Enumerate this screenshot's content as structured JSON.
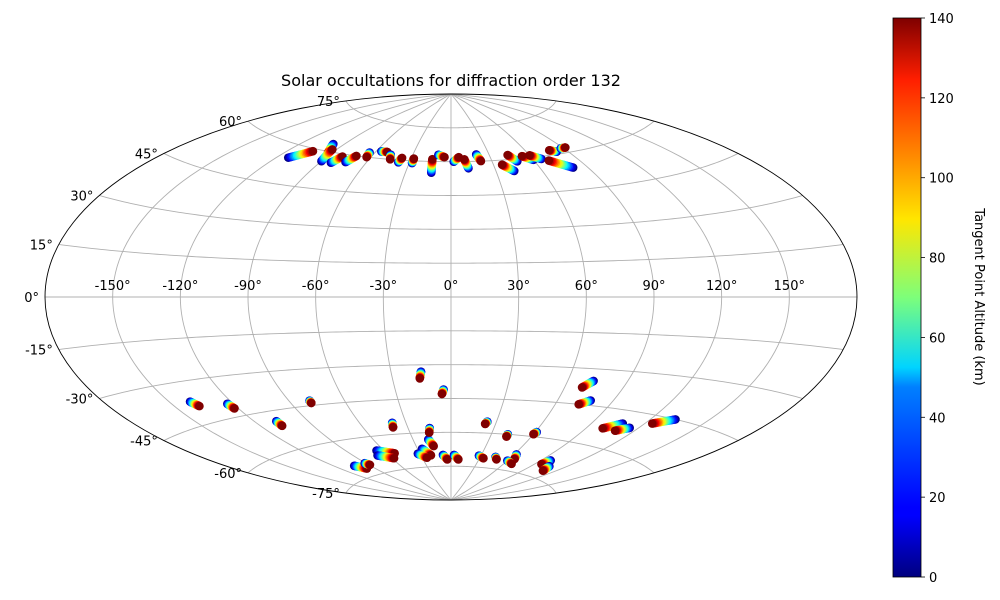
{
  "chart_data": {
    "type": "scatter",
    "projection": "aitoff",
    "title": "Solar occultations for diffraction order 132",
    "xlabel": "",
    "ylabel": "",
    "grid": true,
    "x_tick_labels": [
      "-150°",
      "-120°",
      "-90°",
      "-60°",
      "-30°",
      "0°",
      "30°",
      "60°",
      "90°",
      "120°",
      "150°"
    ],
    "y_tick_labels": [
      "75°",
      "60°",
      "45°",
      "30°",
      "15°",
      "0°",
      "-15°",
      "-30°",
      "-45°",
      "-60°",
      "-75°"
    ],
    "xlim": [
      -180,
      180
    ],
    "ylim": [
      -90,
      90
    ],
    "colorbar": {
      "label": "Tangent Point Altitude (km)",
      "range": [
        0,
        140
      ],
      "tick_labels": [
        "0",
        "20",
        "40",
        "60",
        "80",
        "100",
        "120",
        "140"
      ],
      "colormap": "jet"
    },
    "tracks": [
      {
        "lon_start": -113,
        "lat_start": 55,
        "lon_end": -104,
        "lat_end": 59
      },
      {
        "lon_start": -98,
        "lat_start": 63,
        "lon_end": -92,
        "lat_end": 59
      },
      {
        "lon_start": -90,
        "lat_start": 56,
        "lon_end": -93,
        "lat_end": 61
      },
      {
        "lon_start": -83,
        "lat_start": 56,
        "lon_end": -80,
        "lat_end": 59
      },
      {
        "lon_start": -74,
        "lat_start": 57,
        "lon_end": -71,
        "lat_end": 60
      },
      {
        "lon_start": -64,
        "lat_start": 62,
        "lon_end": -63,
        "lat_end": 60
      },
      {
        "lon_start": -56,
        "lat_start": 63,
        "lon_end": -51,
        "lat_end": 63
      },
      {
        "lon_start": -47,
        "lat_start": 62,
        "lon_end": -45,
        "lat_end": 60
      },
      {
        "lon_start": -38,
        "lat_start": 59,
        "lon_end": -37,
        "lat_end": 61
      },
      {
        "lon_start": -28,
        "lat_start": 59,
        "lon_end": -28,
        "lat_end": 61
      },
      {
        "lon_start": -13,
        "lat_start": 55,
        "lon_end": -14,
        "lat_end": 61
      },
      {
        "lon_start": -10,
        "lat_start": 63,
        "lon_end": -5,
        "lat_end": 62
      },
      {
        "lon_start": 2,
        "lat_start": 60,
        "lon_end": 6,
        "lat_end": 62
      },
      {
        "lon_start": 12,
        "lat_start": 57,
        "lon_end": 10,
        "lat_end": 61
      },
      {
        "lon_start": 20,
        "lat_start": 63,
        "lon_end": 22,
        "lat_end": 60
      },
      {
        "lon_start": 42,
        "lat_start": 55,
        "lon_end": 36,
        "lat_end": 58
      },
      {
        "lon_start": 48,
        "lat_start": 59,
        "lon_end": 44,
        "lat_end": 62
      },
      {
        "lon_start": 60,
        "lat_start": 59,
        "lon_end": 54,
        "lat_end": 61
      },
      {
        "lon_start": 66,
        "lat_start": 59,
        "lon_end": 60,
        "lat_end": 61
      },
      {
        "lon_start": 81,
        "lat_start": 54,
        "lon_end": 70,
        "lat_end": 58
      },
      {
        "lon_start": 82,
        "lat_start": 61,
        "lon_end": 78,
        "lat_end": 62
      },
      {
        "lon_start": 88,
        "lat_start": 62,
        "lon_end": 92,
        "lat_end": 62
      },
      {
        "lon_start": -140,
        "lat_start": -37,
        "lon_end": -138,
        "lat_end": -39
      },
      {
        "lon_start": -123,
        "lat_start": -40,
        "lon_end": -122,
        "lat_end": -42
      },
      {
        "lon_start": -108,
        "lat_start": -49,
        "lon_end": -108,
        "lat_end": -51
      },
      {
        "lon_start": -79,
        "lat_start": -43,
        "lon_end": -79,
        "lat_end": -44
      },
      {
        "lon_start": -39,
        "lat_start": -55,
        "lon_end": -40,
        "lat_end": -57
      },
      {
        "lon_start": -15,
        "lat_start": -33,
        "lon_end": -16,
        "lat_end": -36
      },
      {
        "lon_start": -4,
        "lat_start": -41,
        "lon_end": -5,
        "lat_end": -43
      },
      {
        "lon_start": -18,
        "lat_start": -63,
        "lon_end": -15,
        "lat_end": -66
      },
      {
        "lon_start": -15,
        "lat_start": -58,
        "lon_end": -16,
        "lat_end": -60
      },
      {
        "lon_start": 24,
        "lat_start": -55,
        "lon_end": 23,
        "lat_end": -56
      },
      {
        "lon_start": 42,
        "lat_start": -60,
        "lon_end": 42,
        "lat_end": -61
      },
      {
        "lon_start": 61,
        "lat_start": -58,
        "lon_end": 60,
        "lat_end": -59
      },
      {
        "lon_start": 73,
        "lat_start": -35,
        "lon_end": 69,
        "lat_end": -38
      },
      {
        "lon_start": 78,
        "lat_start": -43,
        "lon_end": 73,
        "lat_end": -45
      },
      {
        "lon_start": 108,
        "lat_start": -50,
        "lon_end": 100,
        "lat_end": -53
      },
      {
        "lon_start": 115,
        "lat_start": -51,
        "lon_end": 109,
        "lat_end": -53
      },
      {
        "lon_start": 133,
        "lat_start": -45,
        "lon_end": 124,
        "lat_end": -48
      },
      {
        "lon_start": -66,
        "lat_start": -66,
        "lon_end": -53,
        "lat_end": -68
      },
      {
        "lon_start": -70,
        "lat_start": -68,
        "lon_end": -58,
        "lat_end": -70
      },
      {
        "lon_start": -26,
        "lat_start": -67,
        "lon_end": -20,
        "lat_end": -70
      },
      {
        "lon_start": -32,
        "lat_start": -69,
        "lon_end": -25,
        "lat_end": -71
      },
      {
        "lon_start": -8,
        "lat_start": -70,
        "lon_end": -4,
        "lat_end": -72
      },
      {
        "lon_start": 3,
        "lat_start": -70,
        "lon_end": 8,
        "lat_end": -72
      },
      {
        "lon_start": 28,
        "lat_start": -70,
        "lon_end": 34,
        "lat_end": -71
      },
      {
        "lon_start": 45,
        "lat_start": -70,
        "lon_end": 48,
        "lat_end": -71
      },
      {
        "lon_start": 62,
        "lat_start": -68,
        "lon_end": 65,
        "lat_end": -70
      },
      {
        "lon_start": 60,
        "lat_start": -71,
        "lon_end": 68,
        "lat_end": -72
      },
      {
        "lon_start": 98,
        "lat_start": -68,
        "lon_end": 96,
        "lat_end": -70
      },
      {
        "lon_start": 106,
        "lat_start": -70,
        "lon_end": 109,
        "lat_end": -72
      },
      {
        "lon_start": -104,
        "lat_start": -70,
        "lon_end": -98,
        "lat_end": -72
      },
      {
        "lon_start": -91,
        "lat_start": -70,
        "lon_end": -89,
        "lat_end": -71
      }
    ]
  }
}
